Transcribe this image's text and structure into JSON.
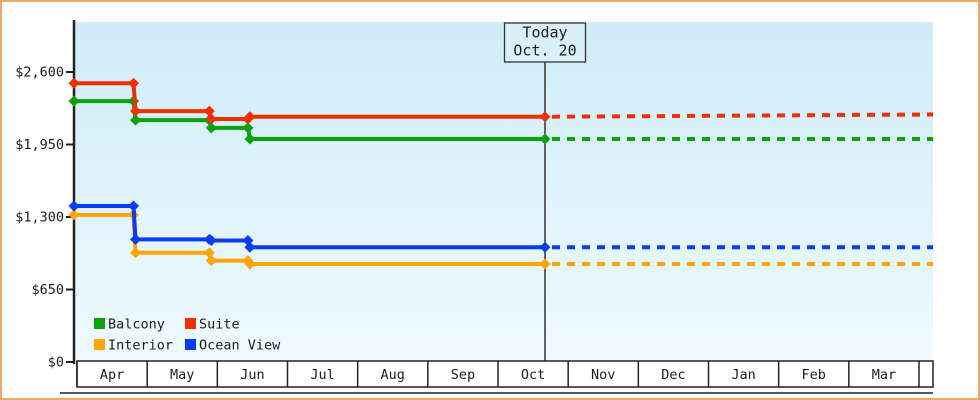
{
  "window": {
    "background": "#ffffff",
    "border_color": "#eda963"
  },
  "theme": {
    "plot_bg_top": "#d0ecf8",
    "plot_bg_bottom": "#effaff",
    "axis_color": "#222222",
    "today_line_color": "#333333",
    "today_box_fill": "#d9f0fa",
    "month_cell_fill": "#ffffff",
    "text_color": "#1c1c1c"
  },
  "today_marker": {
    "line1": "Today",
    "line2": "Oct. 20"
  },
  "chart_data": {
    "type": "line",
    "subtype": "step-price-history",
    "title": "",
    "xlabel": "",
    "ylabel": "",
    "grid": false,
    "legend_position": "bottom-left",
    "x_categories": [
      "Apr",
      "May",
      "Jun",
      "Jul",
      "Aug",
      "Sep",
      "Oct",
      "Nov",
      "Dec",
      "Jan",
      "Feb",
      "Mar"
    ],
    "y_ticks": [
      {
        "label": "$2,600",
        "value": 2600
      },
      {
        "label": "$1,950",
        "value": 1950
      },
      {
        "label": "$1,300",
        "value": 1300
      },
      {
        "label": "$650",
        "value": 650
      },
      {
        "label": "$0",
        "value": 0
      }
    ],
    "ylim": [
      0,
      3050
    ],
    "today": {
      "label": "Today",
      "date": "Oct. 20",
      "month_index": 6.67
    },
    "projection_end_month_index": 12.2,
    "series": [
      {
        "name": "Balcony",
        "color": "#0aa30a",
        "history": [
          {
            "month": 0,
            "price": 2339
          },
          {
            "month": 0.82,
            "price": 2169
          },
          {
            "month": 1.9,
            "price": 2099
          },
          {
            "month": 2.45,
            "price": 1999
          }
        ],
        "price_today": 1999,
        "projected_price_end": 1999
      },
      {
        "name": "Suite",
        "color": "#f03000",
        "history": [
          {
            "month": 0,
            "price": 2499
          },
          {
            "month": 0.82,
            "price": 2249
          },
          {
            "month": 1.9,
            "price": 2179
          },
          {
            "month": 2.45,
            "price": 2199
          }
        ],
        "price_today": 2199,
        "projected_price_end": 2219
      },
      {
        "name": "Interior",
        "color": "#ffa400",
        "history": [
          {
            "month": 0,
            "price": 1319
          },
          {
            "month": 0.82,
            "price": 979
          },
          {
            "month": 1.9,
            "price": 909
          },
          {
            "month": 2.45,
            "price": 879
          }
        ],
        "price_today": 879,
        "projected_price_end": 879
      },
      {
        "name": "Ocean View",
        "color": "#0a3cf0",
        "history": [
          {
            "month": 0,
            "price": 1399
          },
          {
            "month": 0.82,
            "price": 1099
          },
          {
            "month": 1.9,
            "price": 1089
          },
          {
            "month": 2.45,
            "price": 1029
          }
        ],
        "price_today": 1029,
        "projected_price_end": 1029
      }
    ]
  }
}
